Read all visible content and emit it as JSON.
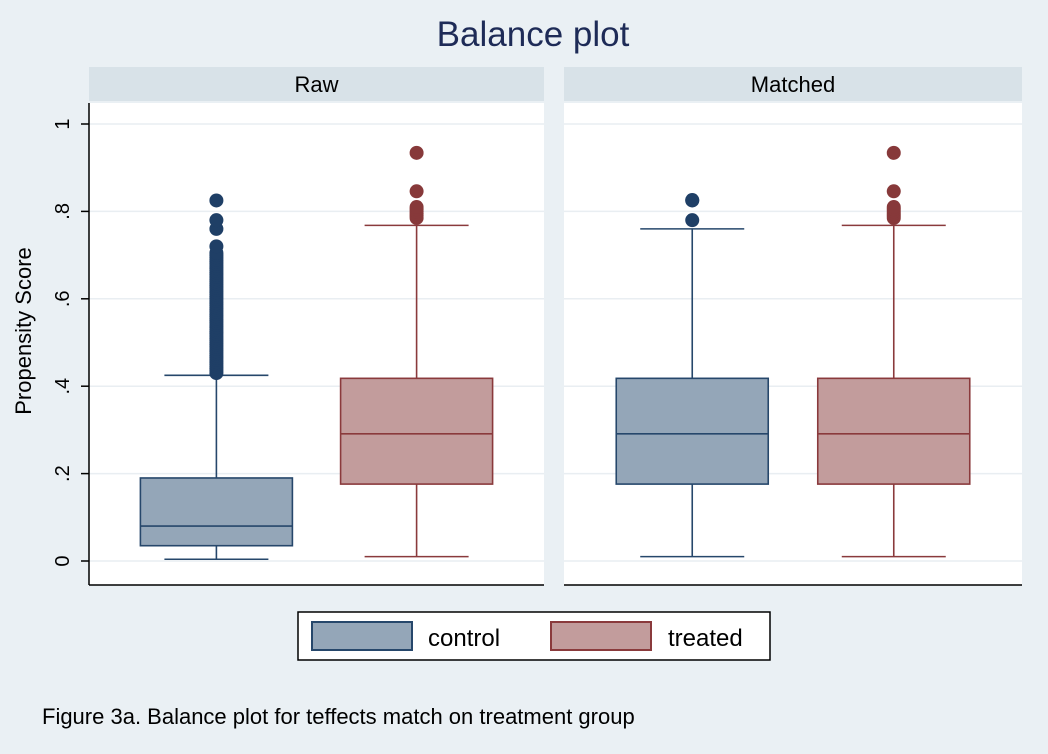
{
  "chart_data": {
    "type": "box",
    "title": "Balance plot",
    "ylabel": "Propensity Score",
    "ylim": [
      0,
      1
    ],
    "yticks": [
      {
        "value": 0,
        "label": "0"
      },
      {
        "value": 0.2,
        "label": ".2"
      },
      {
        "value": 0.4,
        "label": ".4"
      },
      {
        "value": 0.6,
        "label": ".6"
      },
      {
        "value": 0.8,
        "label": ".8"
      },
      {
        "value": 1,
        "label": "1"
      }
    ],
    "grid": true,
    "legend_position": "bottom",
    "series": [
      {
        "name": "control",
        "fill": "#94a6b8",
        "stroke": "#26476b",
        "point_color": "#1f3f66"
      },
      {
        "name": "treated",
        "fill": "#c29c9c",
        "stroke": "#8a3a3c",
        "point_color": "#87393a"
      }
    ],
    "panels": [
      {
        "label": "Raw",
        "boxes": [
          {
            "series": "control",
            "whisker_low": 0.004,
            "q1": 0.035,
            "median": 0.08,
            "q3": 0.19,
            "whisker_high": 0.425,
            "outliers": [
              0.43,
              0.435,
              0.44,
              0.445,
              0.45,
              0.455,
              0.46,
              0.465,
              0.47,
              0.475,
              0.48,
              0.485,
              0.49,
              0.495,
              0.5,
              0.505,
              0.51,
              0.515,
              0.52,
              0.525,
              0.53,
              0.535,
              0.54,
              0.545,
              0.55,
              0.555,
              0.56,
              0.565,
              0.57,
              0.575,
              0.58,
              0.585,
              0.59,
              0.595,
              0.6,
              0.605,
              0.61,
              0.615,
              0.62,
              0.625,
              0.63,
              0.635,
              0.64,
              0.645,
              0.65,
              0.655,
              0.66,
              0.665,
              0.67,
              0.675,
              0.68,
              0.685,
              0.69,
              0.695,
              0.7,
              0.705,
              0.72,
              0.76,
              0.78,
              0.825
            ]
          },
          {
            "series": "treated",
            "whisker_low": 0.01,
            "q1": 0.176,
            "median": 0.291,
            "q3": 0.418,
            "whisker_high": 0.768,
            "outliers": [
              0.785,
              0.79,
              0.795,
              0.8,
              0.805,
              0.81,
              0.846,
              0.934
            ]
          }
        ]
      },
      {
        "label": "Matched",
        "boxes": [
          {
            "series": "control",
            "whisker_low": 0.01,
            "q1": 0.176,
            "median": 0.291,
            "q3": 0.418,
            "whisker_high": 0.76,
            "outliers": [
              0.78,
              0.825,
              0.826
            ]
          },
          {
            "series": "treated",
            "whisker_low": 0.01,
            "q1": 0.176,
            "median": 0.291,
            "q3": 0.418,
            "whisker_high": 0.768,
            "outliers": [
              0.785,
              0.79,
              0.795,
              0.8,
              0.805,
              0.81,
              0.846,
              0.934
            ]
          }
        ]
      }
    ]
  },
  "caption": "Figure 3a. Balance plot for teffects match on treatment group"
}
